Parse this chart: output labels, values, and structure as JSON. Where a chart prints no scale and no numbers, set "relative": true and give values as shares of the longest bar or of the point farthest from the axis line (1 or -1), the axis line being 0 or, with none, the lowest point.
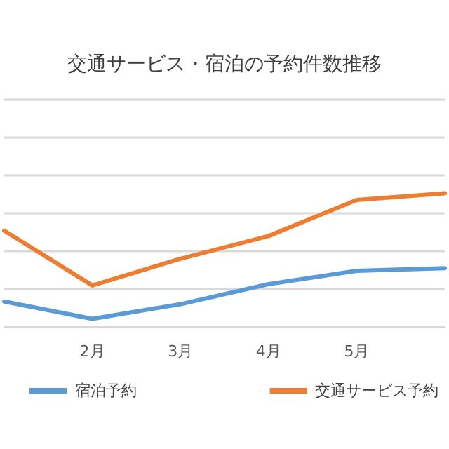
{
  "chart_data": {
    "type": "line",
    "title": "交通サービス・宿泊の予約件数推移",
    "categories": [
      null,
      "2月",
      "3月",
      "4月",
      "5月",
      null
    ],
    "relative": true,
    "grid": "y",
    "legend": "bottom",
    "marker": "none",
    "line_style": "solid",
    "series": [
      {
        "name": "宿泊予約",
        "color": "#5b9bd5",
        "values": [
          0.19,
          0.06,
          0.17,
          0.32,
          0.42,
          0.44
        ]
      },
      {
        "name": "交通サービス予約",
        "color": "#ed7d31",
        "values": [
          0.72,
          0.31,
          0.51,
          0.68,
          0.95,
          1.0
        ]
      }
    ]
  }
}
